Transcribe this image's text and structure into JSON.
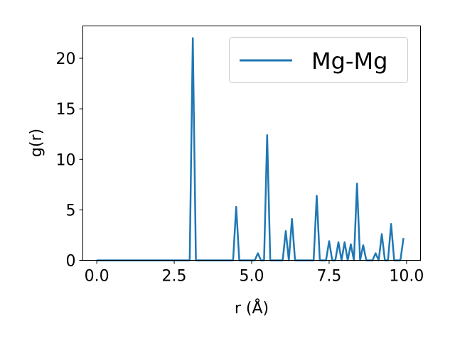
{
  "chart_data": {
    "type": "line",
    "title": "",
    "xlabel": "r (Å)",
    "ylabel": "g(r)",
    "xlim": [
      -0.45,
      10.45
    ],
    "ylim": [
      0,
      23.2
    ],
    "xticks": [
      0.0,
      2.5,
      5.0,
      7.5,
      10.0
    ],
    "xtick_labels": [
      "0.0",
      "2.5",
      "5.0",
      "7.5",
      "10.0"
    ],
    "yticks": [
      0,
      5,
      10,
      15,
      20
    ],
    "ytick_labels": [
      "0",
      "5",
      "10",
      "15",
      "20"
    ],
    "grid": false,
    "legend_position": "upper right",
    "series": [
      {
        "name": "Mg-Mg",
        "color": "#1f77b4",
        "x": [
          0.0,
          0.1,
          0.2,
          0.3,
          0.4,
          0.5,
          0.6,
          0.7,
          0.8,
          0.9,
          1.0,
          1.1,
          1.2,
          1.3,
          1.4,
          1.5,
          1.6,
          1.7,
          1.8,
          1.9,
          2.0,
          2.1,
          2.2,
          2.3,
          2.4,
          2.5,
          2.6,
          2.7,
          2.8,
          2.9,
          3.0,
          3.1,
          3.2,
          3.3,
          3.4,
          3.5,
          3.6,
          3.7,
          3.8,
          3.9,
          4.0,
          4.1,
          4.2,
          4.3,
          4.4,
          4.5,
          4.6,
          4.7,
          4.8,
          4.9,
          5.0,
          5.1,
          5.2,
          5.3,
          5.4,
          5.5,
          5.6,
          5.7,
          5.8,
          5.9,
          6.0,
          6.1,
          6.2,
          6.3,
          6.4,
          6.5,
          6.6,
          6.7,
          6.8,
          6.9,
          7.0,
          7.1,
          7.2,
          7.3,
          7.4,
          7.5,
          7.6,
          7.7,
          7.8,
          7.9,
          8.0,
          8.1,
          8.2,
          8.3,
          8.4,
          8.5,
          8.6,
          8.7,
          8.8,
          8.9,
          9.0,
          9.1,
          9.2,
          9.3,
          9.4,
          9.5,
          9.6,
          9.7,
          9.8,
          9.9
        ],
        "y": [
          0,
          0,
          0,
          0,
          0,
          0,
          0,
          0,
          0,
          0,
          0,
          0,
          0,
          0,
          0,
          0,
          0,
          0,
          0,
          0,
          0,
          0,
          0,
          0,
          0,
          0,
          0,
          0,
          0,
          0,
          0,
          22.0,
          0,
          0,
          0,
          0,
          0,
          0,
          0,
          0,
          0,
          0,
          0,
          0,
          0,
          5.3,
          0,
          0,
          0,
          0,
          0,
          0,
          0.7,
          0,
          0,
          12.4,
          0,
          0,
          0,
          0,
          0,
          2.9,
          0,
          4.1,
          0,
          0,
          0,
          0,
          0,
          0,
          0,
          6.4,
          0,
          0,
          0,
          1.9,
          0,
          0,
          1.8,
          0,
          1.8,
          0,
          1.6,
          0,
          7.6,
          0,
          1.5,
          0,
          0,
          0,
          0.7,
          0,
          2.6,
          0,
          0,
          3.6,
          0,
          0,
          0,
          2.2
        ]
      }
    ]
  }
}
